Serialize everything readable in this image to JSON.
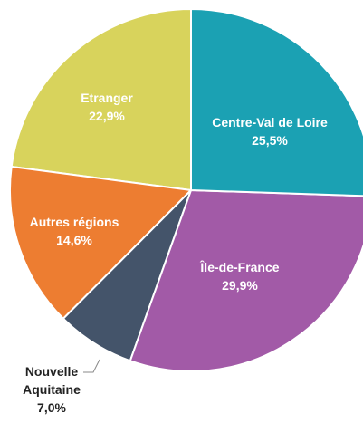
{
  "chart_data": {
    "type": "pie",
    "categories": [
      "Centre-Val de Loire",
      "Île-de-France",
      "Nouvelle Aquitaine",
      "Autres régions",
      "Etranger"
    ],
    "values": [
      25.5,
      29.9,
      7.0,
      14.6,
      22.9
    ],
    "value_labels": [
      "25,5%",
      "29,9%",
      "7,0%",
      "14,6%",
      "22,9%"
    ],
    "colors": [
      "#1ba1b3",
      "#a25aa7",
      "#44546a",
      "#ed7d31",
      "#d8d35c"
    ]
  }
}
